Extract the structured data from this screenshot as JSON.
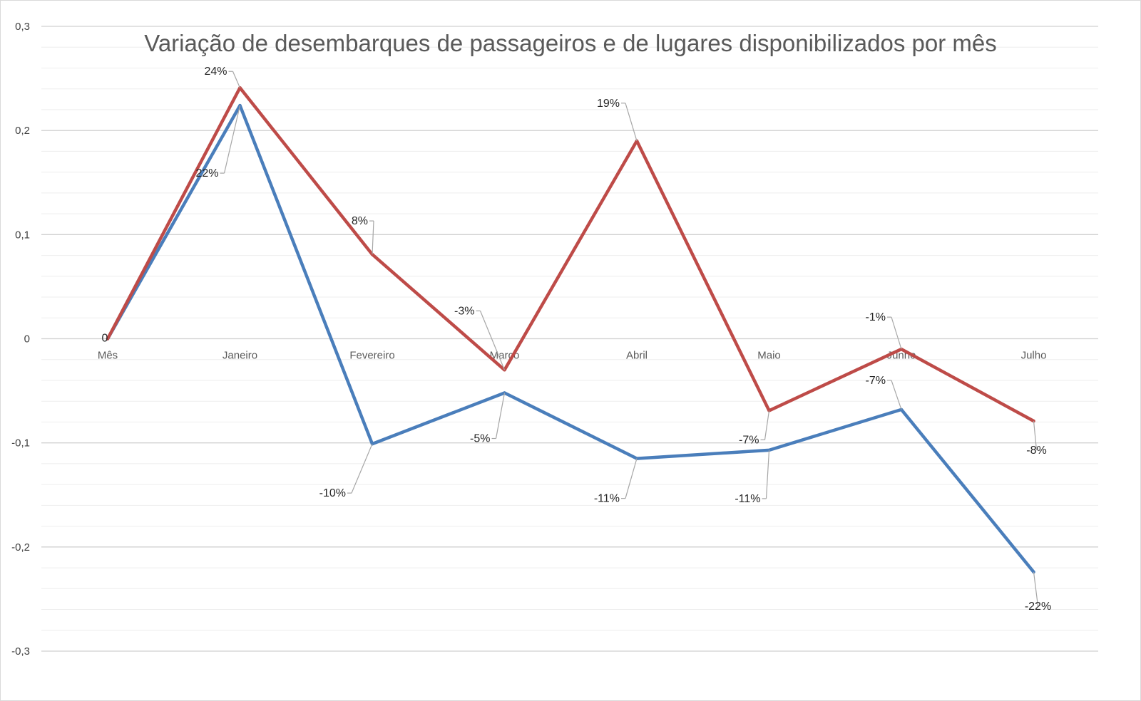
{
  "chart_data": {
    "type": "line",
    "title": "Variação de desembarques de passageiros e de lugares disponibilizados por mês",
    "categories": [
      "Mês",
      "Janeiro",
      "Fevereiro",
      "Março",
      "Abril",
      "Maio",
      "Junho",
      "Julho"
    ],
    "ylim": [
      -0.3,
      0.3
    ],
    "yticks": [
      0.3,
      0.2,
      0.1,
      0,
      -0.1,
      -0.2,
      -0.3
    ],
    "ytick_labels": [
      "0,3",
      "0,2",
      "0,1",
      "0",
      "-0,1",
      "-0,2",
      "-0,3"
    ],
    "grid": true,
    "legend": "none",
    "series": [
      {
        "color": "#4a7ebb",
        "values": [
          0,
          0.224,
          -0.101,
          -0.052,
          -0.115,
          -0.107,
          -0.068,
          -0.224
        ],
        "labels": [
          "0",
          "22%",
          "-10%",
          "-5%",
          "-11%",
          "-11%",
          "-7%",
          "-22%"
        ]
      },
      {
        "color": "#be4b48",
        "values": [
          0,
          0.241,
          0.081,
          -0.03,
          0.19,
          -0.069,
          -0.01,
          -0.079
        ],
        "labels": [
          "",
          "24%",
          "8%",
          "-3%",
          "19%",
          "-7%",
          "-1%",
          "-8%"
        ]
      }
    ]
  }
}
